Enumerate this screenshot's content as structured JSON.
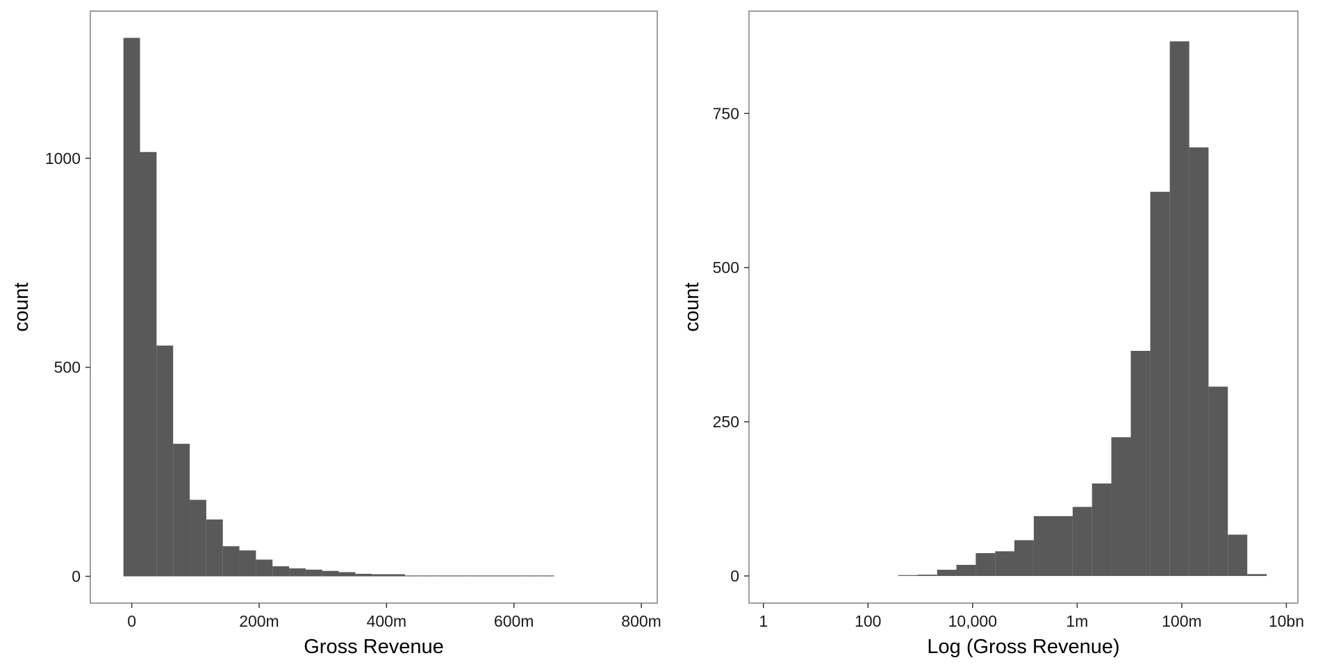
{
  "chart_data": [
    {
      "type": "bar",
      "histogram": true,
      "xlabel": "Gross Revenue",
      "ylabel": "count",
      "xlim": [
        -65,
        825
      ],
      "ylim": [
        -64,
        1352
      ],
      "x_ticks": [
        {
          "value": 0,
          "label": "0"
        },
        {
          "value": 200,
          "label": "200m"
        },
        {
          "value": 400,
          "label": "400m"
        },
        {
          "value": 600,
          "label": "600m"
        },
        {
          "value": 800,
          "label": "800m"
        }
      ],
      "y_ticks": [
        {
          "value": 0,
          "label": "0"
        },
        {
          "value": 500,
          "label": "500"
        },
        {
          "value": 1000,
          "label": "1000"
        }
      ],
      "grid": false,
      "bins": [
        {
          "x0": -13,
          "x1": 13,
          "count": 1288
        },
        {
          "x0": 13,
          "x1": 39,
          "count": 1015
        },
        {
          "x0": 39,
          "x1": 65,
          "count": 552
        },
        {
          "x0": 65,
          "x1": 91,
          "count": 317
        },
        {
          "x0": 91,
          "x1": 117,
          "count": 183
        },
        {
          "x0": 117,
          "x1": 143,
          "count": 136
        },
        {
          "x0": 143,
          "x1": 169,
          "count": 72
        },
        {
          "x0": 169,
          "x1": 195,
          "count": 62
        },
        {
          "x0": 195,
          "x1": 221,
          "count": 40
        },
        {
          "x0": 221,
          "x1": 247,
          "count": 24
        },
        {
          "x0": 247,
          "x1": 273,
          "count": 19
        },
        {
          "x0": 273,
          "x1": 299,
          "count": 16
        },
        {
          "x0": 299,
          "x1": 325,
          "count": 13
        },
        {
          "x0": 325,
          "x1": 351,
          "count": 10
        },
        {
          "x0": 351,
          "x1": 377,
          "count": 6
        },
        {
          "x0": 377,
          "x1": 403,
          "count": 5
        },
        {
          "x0": 403,
          "x1": 429,
          "count": 5
        },
        {
          "x0": 429,
          "x1": 455,
          "count": 1
        },
        {
          "x0": 455,
          "x1": 481,
          "count": 1
        },
        {
          "x0": 481,
          "x1": 507,
          "count": 0
        },
        {
          "x0": 507,
          "x1": 533,
          "count": 0
        },
        {
          "x0": 533,
          "x1": 559,
          "count": 0
        },
        {
          "x0": 559,
          "x1": 585,
          "count": 0
        },
        {
          "x0": 585,
          "x1": 611,
          "count": 0
        },
        {
          "x0": 611,
          "x1": 637,
          "count": 0
        },
        {
          "x0": 637,
          "x1": 663,
          "count": 1
        }
      ]
    },
    {
      "type": "bar",
      "histogram": true,
      "xlabel": "Log (Gross Revenue)",
      "ylabel": "count",
      "x_scale": "log10",
      "xlim": [
        0.53,
        16600000000
      ],
      "ylim": [
        -44,
        916
      ],
      "x_ticks": [
        {
          "value": 1,
          "label": "1"
        },
        {
          "value": 100,
          "label": "100"
        },
        {
          "value": 10000,
          "label": "10,000"
        },
        {
          "value": 1000000,
          "label": "1m"
        },
        {
          "value": 100000000,
          "label": "100m"
        },
        {
          "value": 10000000000,
          "label": "10bn"
        }
      ],
      "y_ticks": [
        {
          "value": 0,
          "label": "0"
        },
        {
          "value": 250,
          "label": "250"
        },
        {
          "value": 500,
          "label": "500"
        },
        {
          "value": 750,
          "label": "750"
        }
      ],
      "grid": false,
      "bins": [
        {
          "x0": 380,
          "x1": 890,
          "count": 1
        },
        {
          "x0": 890,
          "x1": 2100,
          "count": 2
        },
        {
          "x0": 2100,
          "x1": 4900,
          "count": 10
        },
        {
          "x0": 4900,
          "x1": 11500,
          "count": 18
        },
        {
          "x0": 11500,
          "x1": 27000,
          "count": 37
        },
        {
          "x0": 27000,
          "x1": 63000,
          "count": 40
        },
        {
          "x0": 63000,
          "x1": 148000,
          "count": 58
        },
        {
          "x0": 148000,
          "x1": 350000,
          "count": 97
        },
        {
          "x0": 350000,
          "x1": 820000,
          "count": 97
        },
        {
          "x0": 820000,
          "x1": 1920000,
          "count": 112
        },
        {
          "x0": 1920000,
          "x1": 4500000,
          "count": 150
        },
        {
          "x0": 4500000,
          "x1": 10600000,
          "count": 225
        },
        {
          "x0": 10600000,
          "x1": 25000000,
          "count": 365
        },
        {
          "x0": 25000000,
          "x1": 59000000,
          "count": 623
        },
        {
          "x0": 59000000,
          "x1": 139000000,
          "count": 867
        },
        {
          "x0": 139000000,
          "x1": 325000000,
          "count": 695
        },
        {
          "x0": 325000000,
          "x1": 760000000,
          "count": 307
        },
        {
          "x0": 760000000,
          "x1": 1790000000,
          "count": 67
        },
        {
          "x0": 1790000000,
          "x1": 4200000000,
          "count": 3
        }
      ]
    }
  ]
}
